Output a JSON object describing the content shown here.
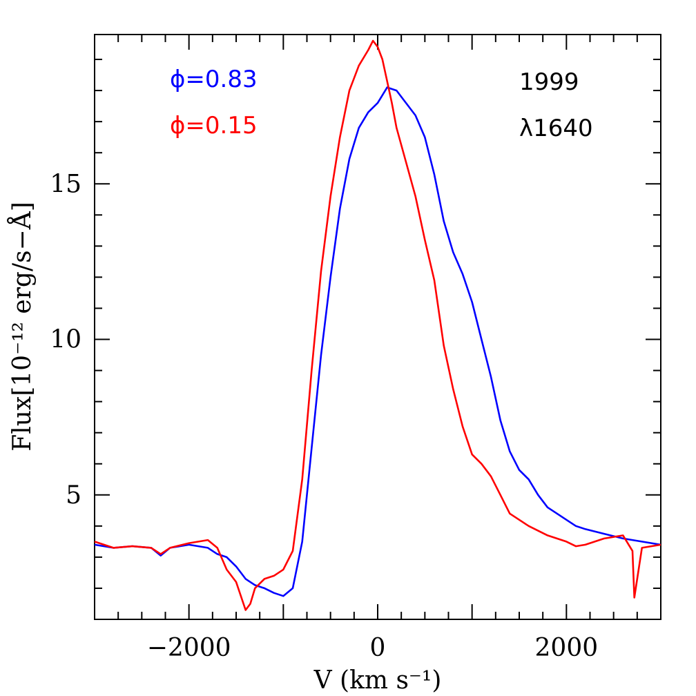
{
  "chart_data": {
    "type": "line",
    "xlabel": "V (km s⁻¹)",
    "ylabel": "Flux[10⁻¹² erg/s−Å]",
    "xlim": [
      -3000,
      3000
    ],
    "ylim": [
      1,
      19.8
    ],
    "x_ticks": [
      -2000,
      0,
      2000
    ],
    "x_tick_labels": [
      "−2000",
      "0",
      "2000"
    ],
    "y_ticks": [
      5,
      10,
      15
    ],
    "y_tick_labels": [
      "5",
      "10",
      "15"
    ],
    "grid": false,
    "annotations": [
      {
        "text": "1999",
        "color": "#000000"
      },
      {
        "text": "λ1640",
        "color": "#000000"
      }
    ],
    "series": [
      {
        "name": "ϕ=0.83",
        "color": "#0000ff",
        "x": [
          -3000,
          -2800,
          -2600,
          -2400,
          -2300,
          -2200,
          -2000,
          -1800,
          -1700,
          -1600,
          -1500,
          -1400,
          -1300,
          -1200,
          -1100,
          -1000,
          -900,
          -800,
          -700,
          -600,
          -500,
          -400,
          -300,
          -200,
          -100,
          0,
          100,
          200,
          300,
          400,
          500,
          600,
          700,
          800,
          900,
          1000,
          1100,
          1200,
          1300,
          1400,
          1500,
          1600,
          1700,
          1800,
          1900,
          2000,
          2100,
          2200,
          2400,
          2600,
          2800,
          3000
        ],
        "y": [
          3.4,
          3.3,
          3.35,
          3.3,
          3.05,
          3.3,
          3.4,
          3.3,
          3.1,
          3.0,
          2.7,
          2.3,
          2.1,
          2.0,
          1.85,
          1.75,
          2.0,
          3.5,
          6.5,
          9.5,
          12.0,
          14.2,
          15.8,
          16.8,
          17.3,
          17.6,
          18.1,
          18.0,
          17.6,
          17.2,
          16.5,
          15.3,
          13.8,
          12.8,
          12.1,
          11.2,
          10.0,
          8.8,
          7.4,
          6.4,
          5.8,
          5.5,
          5.0,
          4.6,
          4.4,
          4.2,
          4.0,
          3.9,
          3.75,
          3.6,
          3.5,
          3.4
        ]
      },
      {
        "name": "ϕ=0.15",
        "color": "#ff0000",
        "x": [
          -3000,
          -2800,
          -2600,
          -2400,
          -2300,
          -2200,
          -2000,
          -1800,
          -1700,
          -1600,
          -1500,
          -1400,
          -1350,
          -1300,
          -1200,
          -1100,
          -1000,
          -900,
          -800,
          -700,
          -600,
          -500,
          -400,
          -300,
          -200,
          -100,
          -50,
          0,
          50,
          100,
          150,
          200,
          300,
          400,
          500,
          600,
          700,
          800,
          900,
          1000,
          1100,
          1200,
          1300,
          1400,
          1500,
          1600,
          1800,
          2000,
          2100,
          2200,
          2400,
          2600,
          2700,
          2720,
          2800,
          3000
        ],
        "y": [
          3.5,
          3.3,
          3.35,
          3.3,
          3.1,
          3.3,
          3.45,
          3.55,
          3.3,
          2.6,
          2.2,
          1.3,
          1.5,
          2.0,
          2.3,
          2.4,
          2.6,
          3.2,
          5.5,
          9.0,
          12.2,
          14.6,
          16.5,
          18.0,
          18.8,
          19.3,
          19.6,
          19.4,
          19.0,
          18.3,
          17.6,
          16.8,
          15.7,
          14.6,
          13.2,
          11.9,
          9.8,
          8.4,
          7.2,
          6.3,
          6.0,
          5.6,
          5.0,
          4.4,
          4.2,
          4.0,
          3.7,
          3.5,
          3.35,
          3.4,
          3.6,
          3.7,
          3.2,
          1.7,
          3.3,
          3.4
        ]
      }
    ]
  }
}
